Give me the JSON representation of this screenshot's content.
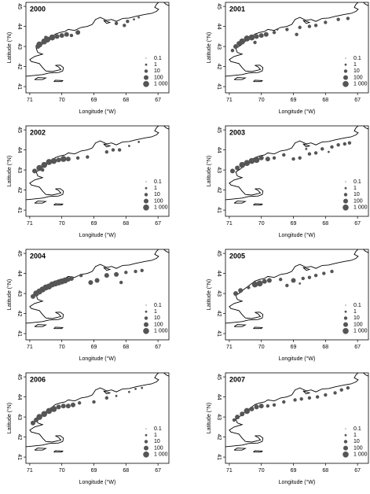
{
  "chart_data": [
    {
      "type": "bubble",
      "title": "2000",
      "xlabel": "Longitude (°W)",
      "ylabel": "Latitude (°N)",
      "xlim": [
        71.12,
        66.66
      ],
      "ylim": [
        40.69,
        45.2
      ],
      "xticks": [
        71,
        70,
        69,
        68,
        67
      ],
      "yticks": [
        41,
        42,
        43,
        44,
        45
      ],
      "color": "#555555",
      "x": [
        70.75,
        70.7,
        70.55,
        70.45,
        70.3,
        70.15,
        70.0,
        69.85,
        69.7,
        69.5,
        68.3,
        67.95,
        67.75,
        67.6,
        68.05,
        70.5
      ],
      "y": [
        43.0,
        43.1,
        43.25,
        43.35,
        43.45,
        43.5,
        43.55,
        43.6,
        43.55,
        43.7,
        44.15,
        44.25,
        44.35,
        44.45,
        44.05,
        43.45
      ],
      "sizes": [
        100,
        1000,
        1000,
        1000,
        1000,
        100,
        100,
        100,
        10,
        100,
        10,
        10,
        1,
        1,
        10,
        10
      ],
      "size_legend": [
        {
          "value": 0.1,
          "label": "0.1"
        },
        1,
        10,
        100,
        {
          "value": 1000,
          "label": "1 000"
        }
      ]
    },
    {
      "type": "bubble",
      "title": "2001",
      "xlabel": "Longitude (°W)",
      "ylabel": "Latitude (°N)",
      "xlim": [
        71.12,
        66.66
      ],
      "ylim": [
        40.69,
        45.2
      ],
      "xticks": [
        71,
        70,
        69,
        68,
        67
      ],
      "yticks": [
        41,
        42,
        43,
        44,
        45
      ],
      "color": "#555555",
      "x": [
        70.9,
        70.8,
        70.7,
        70.6,
        70.45,
        70.3,
        70.15,
        70.0,
        69.85,
        69.6,
        69.2,
        68.8,
        68.5,
        68.3,
        68.0,
        67.6,
        67.3,
        68.9,
        69.5,
        70.2
      ],
      "y": [
        42.8,
        43.0,
        43.15,
        43.25,
        43.4,
        43.45,
        43.5,
        43.55,
        43.6,
        43.7,
        43.85,
        43.95,
        44.0,
        44.05,
        44.2,
        44.35,
        44.4,
        43.6,
        43.85,
        43.2
      ],
      "sizes": [
        10,
        100,
        100,
        1000,
        1000,
        1000,
        100,
        100,
        100,
        10,
        10,
        10,
        10,
        10,
        10,
        10,
        10,
        10,
        1,
        10
      ],
      "size_legend": [
        {
          "value": 0.1,
          "label": "0.1"
        },
        1,
        10,
        100,
        {
          "value": 1000,
          "label": "1 000"
        }
      ]
    },
    {
      "type": "bubble",
      "title": "2002",
      "xlabel": "Longitude (°W)",
      "ylabel": "Latitude (°N)",
      "xlim": [
        71.12,
        66.66
      ],
      "ylim": [
        40.69,
        45.2
      ],
      "xticks": [
        71,
        70,
        69,
        68,
        67
      ],
      "yticks": [
        41,
        42,
        43,
        44,
        45
      ],
      "color": "#555555",
      "x": [
        70.85,
        70.7,
        70.55,
        70.4,
        70.25,
        70.1,
        69.95,
        69.8,
        69.5,
        69.2,
        68.6,
        68.4,
        68.2,
        67.9,
        67.6,
        70.6
      ],
      "y": [
        42.95,
        43.1,
        43.25,
        43.4,
        43.45,
        43.5,
        43.55,
        43.55,
        43.6,
        43.65,
        43.9,
        44.0,
        44.0,
        44.2,
        44.4,
        43.0
      ],
      "sizes": [
        100,
        1000,
        1000,
        1000,
        1000,
        100,
        1000,
        100,
        10,
        10,
        10,
        10,
        10,
        1,
        1,
        10
      ],
      "size_legend": [
        {
          "value": 0.1,
          "label": "0.1"
        },
        1,
        10,
        100,
        {
          "value": 1000,
          "label": "1 000"
        }
      ]
    },
    {
      "type": "bubble",
      "title": "2003",
      "xlabel": "Longitude (°W)",
      "ylabel": "Latitude (°N)",
      "xlim": [
        71.12,
        66.66
      ],
      "ylim": [
        40.69,
        45.2
      ],
      "xticks": [
        71,
        70,
        69,
        68,
        67
      ],
      "yticks": [
        41,
        42,
        43,
        44,
        45
      ],
      "color": "#555555",
      "x": [
        70.9,
        70.75,
        70.6,
        70.45,
        70.3,
        70.15,
        70.0,
        69.8,
        69.6,
        69.3,
        69.0,
        68.8,
        68.5,
        68.3,
        68.1,
        67.8,
        67.6,
        67.4,
        67.25,
        68.6,
        67.9
      ],
      "y": [
        42.95,
        43.1,
        43.25,
        43.35,
        43.45,
        43.5,
        43.6,
        43.55,
        43.6,
        43.75,
        43.55,
        43.6,
        43.8,
        43.85,
        44.05,
        44.15,
        44.25,
        44.3,
        44.35,
        44.05,
        43.9
      ],
      "sizes": [
        100,
        100,
        1000,
        1000,
        1000,
        1000,
        100,
        100,
        10,
        10,
        10,
        10,
        10,
        10,
        10,
        10,
        10,
        10,
        10,
        1,
        1
      ],
      "size_legend": [
        {
          "value": 0.1,
          "label": "0.1"
        },
        1,
        10,
        100,
        {
          "value": 1000,
          "label": "1 000"
        }
      ]
    },
    {
      "type": "bubble",
      "title": "2004",
      "xlabel": "Longitude (°W)",
      "ylabel": "Latitude (°N)",
      "xlim": [
        71.12,
        66.66
      ],
      "ylim": [
        40.69,
        45.2
      ],
      "xticks": [
        71,
        70,
        69,
        68,
        67
      ],
      "yticks": [
        41,
        42,
        43,
        44,
        45
      ],
      "color": "#555555",
      "x": [
        70.9,
        70.8,
        70.7,
        70.6,
        70.5,
        70.4,
        70.3,
        70.2,
        70.1,
        70.0,
        69.9,
        69.8,
        69.7,
        69.1,
        68.9,
        68.6,
        68.3,
        68.0,
        67.7,
        67.5,
        68.15,
        69.4
      ],
      "y": [
        42.85,
        43.0,
        43.1,
        43.2,
        43.3,
        43.35,
        43.45,
        43.5,
        43.55,
        43.6,
        43.65,
        43.7,
        43.75,
        43.55,
        43.65,
        43.9,
        43.95,
        44.05,
        44.1,
        44.15,
        43.55,
        43.9
      ],
      "sizes": [
        100,
        1000,
        1000,
        1000,
        1000,
        1000,
        1000,
        1000,
        1000,
        1000,
        1000,
        100,
        100,
        100,
        100,
        100,
        100,
        10,
        10,
        10,
        10,
        10
      ],
      "size_legend": [
        {
          "value": 0.1,
          "label": "0.1"
        },
        1,
        10,
        100,
        {
          "value": 1000,
          "label": "1 000"
        }
      ]
    },
    {
      "type": "bubble",
      "title": "2005",
      "xlabel": "Longitude (°W)",
      "ylabel": "Latitude (°N)",
      "xlim": [
        71.12,
        66.66
      ],
      "ylim": [
        40.69,
        45.2
      ],
      "xticks": [
        71,
        70,
        69,
        68,
        67
      ],
      "yticks": [
        41,
        42,
        43,
        44,
        45
      ],
      "color": "#555555",
      "x": [
        70.8,
        70.65,
        70.4,
        70.2,
        70.05,
        69.9,
        69.75,
        69.4,
        69.0,
        68.7,
        68.5,
        68.3,
        68.05,
        67.8,
        69.2,
        68.8
      ],
      "y": [
        43.0,
        43.15,
        43.3,
        43.45,
        43.5,
        43.6,
        43.65,
        43.7,
        43.65,
        43.75,
        43.8,
        43.9,
        44.0,
        44.1,
        43.4,
        43.5
      ],
      "sizes": [
        100,
        100,
        10,
        1000,
        1000,
        100,
        100,
        10,
        100,
        10,
        10,
        10,
        10,
        10,
        10,
        1
      ],
      "size_legend": [
        {
          "value": 0.1,
          "label": "0.1"
        },
        1,
        10,
        100,
        {
          "value": 1000,
          "label": "1 000"
        }
      ]
    },
    {
      "type": "bubble",
      "title": "2006",
      "xlabel": "Longitude (°W)",
      "ylabel": "Latitude (°N)",
      "xlim": [
        71.12,
        66.66
      ],
      "ylim": [
        40.69,
        45.2
      ],
      "xticks": [
        71,
        70,
        69,
        68,
        67
      ],
      "yticks": [
        41,
        42,
        43,
        44,
        45
      ],
      "color": "#555555",
      "x": [
        70.9,
        70.8,
        70.7,
        70.55,
        70.4,
        70.25,
        70.1,
        69.95,
        69.8,
        69.65,
        69.45,
        69.0,
        68.6,
        68.3,
        67.9,
        67.7,
        67.5
      ],
      "y": [
        42.7,
        42.85,
        43.0,
        43.15,
        43.3,
        43.4,
        43.5,
        43.55,
        43.55,
        43.6,
        43.7,
        43.75,
        43.95,
        44.05,
        44.25,
        44.4,
        44.45
      ],
      "sizes": [
        100,
        100,
        1000,
        1000,
        1000,
        1000,
        100,
        100,
        100,
        100,
        10,
        10,
        10,
        1,
        1,
        1,
        1
      ],
      "size_legend": [
        {
          "value": 0.1,
          "label": "0.1"
        },
        1,
        10,
        100,
        {
          "value": 1000,
          "label": "1 000"
        }
      ]
    },
    {
      "type": "bubble",
      "title": "2007",
      "xlabel": "Longitude (°W)",
      "ylabel": "Latitude (°N)",
      "xlim": [
        71.12,
        66.66
      ],
      "ylim": [
        40.69,
        45.2
      ],
      "xticks": [
        71,
        70,
        69,
        68,
        67
      ],
      "yticks": [
        41,
        42,
        43,
        44,
        45
      ],
      "color": "#555555",
      "x": [
        70.85,
        70.75,
        70.6,
        70.45,
        70.3,
        70.15,
        70.0,
        69.8,
        69.6,
        69.3,
        68.95,
        68.75,
        68.5,
        68.25,
        68.0,
        67.7,
        67.5,
        67.3
      ],
      "y": [
        42.85,
        43.0,
        43.15,
        43.3,
        43.4,
        43.5,
        43.55,
        43.55,
        43.6,
        43.75,
        43.85,
        43.9,
        43.95,
        44.0,
        44.1,
        44.2,
        44.35,
        44.45
      ],
      "sizes": [
        10,
        100,
        100,
        1000,
        100,
        100,
        100,
        10,
        10,
        10,
        10,
        10,
        10,
        10,
        10,
        10,
        10,
        10
      ],
      "size_legend": [
        {
          "value": 0.1,
          "label": "0.1"
        },
        1,
        10,
        100,
        {
          "value": 1000,
          "label": "1 000"
        }
      ]
    }
  ]
}
